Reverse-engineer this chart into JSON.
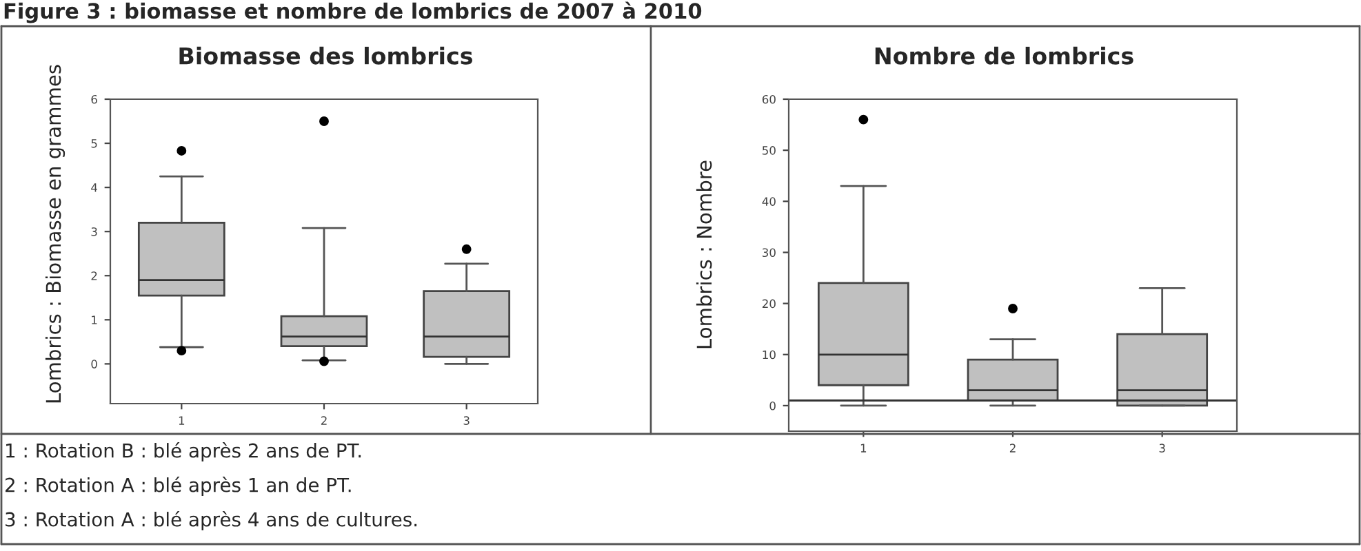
{
  "chart_data": [
    {
      "type": "box",
      "title": "Biomasse des lombrics",
      "ylabel": "Lombrics : Biomasse en grammes",
      "categories": [
        "1",
        "2",
        "3"
      ],
      "color": "#c0c0c0",
      "boxes": [
        {
          "low": 0.38,
          "q1": 1.55,
          "median": 1.9,
          "q3": 3.2,
          "high": 4.25,
          "outliers": [
            4.83,
            0.3
          ]
        },
        {
          "low": 0.08,
          "q1": 0.4,
          "median": 0.62,
          "q3": 1.08,
          "high": 3.08,
          "outliers": [
            5.5,
            0.06
          ]
        },
        {
          "low": 0.0,
          "q1": 0.16,
          "median": 0.62,
          "q3": 1.65,
          "high": 2.27,
          "outliers": [
            2.6
          ]
        }
      ],
      "ylim": [
        -0.9,
        6
      ],
      "yticks": [
        0,
        1,
        2,
        3,
        4,
        5,
        6
      ],
      "annotations": [
        "Figure 3 : biomasse et nombre de lombrics de 2007 à 2010",
        "1 : Rotation B : blé après 2 ans de PT.",
        "2 : Rotation A : blé après 1 an de PT.",
        "3 : Rotation A : blé après 4 ans de cultures."
      ]
    },
    {
      "type": "box",
      "title": "Nombre de lombrics",
      "ylabel": "Lombrics : Nombre",
      "categories": [
        "1",
        "2",
        "3"
      ],
      "color": "#c0c0c0",
      "boxes": [
        {
          "low": 0,
          "q1": 4,
          "median": 10,
          "q3": 24,
          "high": 43,
          "outliers": [
            56
          ]
        },
        {
          "low": 0,
          "q1": 1,
          "median": 3,
          "q3": 9,
          "high": 13,
          "outliers": [
            19
          ]
        },
        {
          "low": 0,
          "q1": 0,
          "median": 3,
          "q3": 14,
          "high": 23
        }
      ],
      "ylim": [
        -5,
        60
      ],
      "yticks": [
        0,
        10,
        20,
        30,
        40,
        50,
        60
      ],
      "ref_lines": [
        {
          "axis": "y",
          "value": 1,
          "color": "#333333"
        }
      ]
    }
  ]
}
